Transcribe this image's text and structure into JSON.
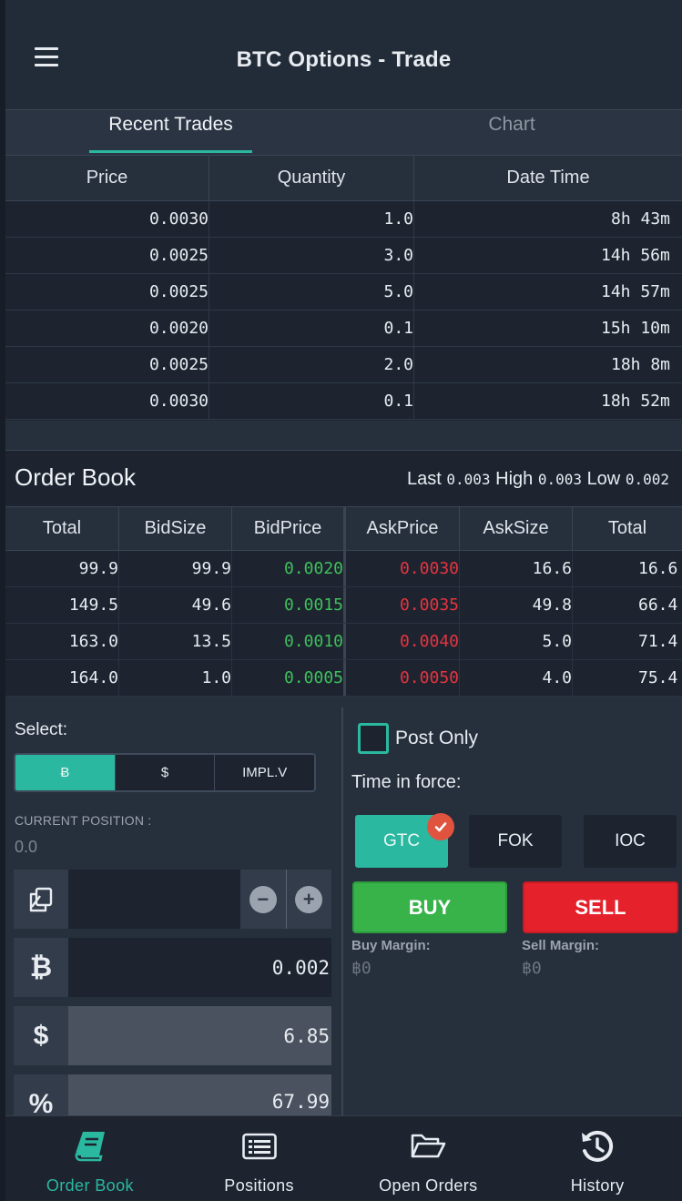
{
  "header": {
    "title": "BTC Options - Trade"
  },
  "tabs": [
    {
      "label": "Recent Trades",
      "active": true
    },
    {
      "label": "Chart",
      "active": false
    }
  ],
  "recent_trades": {
    "columns": [
      "Price",
      "Quantity",
      "Date Time"
    ],
    "rows": [
      {
        "price": "0.0030",
        "quantity": "1.0",
        "time": "8h 43m"
      },
      {
        "price": "0.0025",
        "quantity": "3.0",
        "time": "14h 56m"
      },
      {
        "price": "0.0025",
        "quantity": "5.0",
        "time": "14h 57m"
      },
      {
        "price": "0.0020",
        "quantity": "0.1",
        "time": "15h 10m"
      },
      {
        "price": "0.0025",
        "quantity": "2.0",
        "time": "18h 8m"
      },
      {
        "price": "0.0030",
        "quantity": "0.1",
        "time": "18h 52m"
      }
    ]
  },
  "order_book": {
    "title": "Order Book",
    "last_label": "Last",
    "last_value": "0.003",
    "high_label": "High",
    "high_value": "0.003",
    "low_label": "Low",
    "low_value": "0.002",
    "columns": [
      "Total",
      "BidSize",
      "BidPrice",
      "AskPrice",
      "AskSize",
      "Total"
    ],
    "rows": [
      {
        "bid_total": "99.9",
        "bid_size": "99.9",
        "bid_price": "0.0020",
        "ask_price": "0.0030",
        "ask_size": "16.6",
        "ask_total": "16.6"
      },
      {
        "bid_total": "149.5",
        "bid_size": "49.6",
        "bid_price": "0.0015",
        "ask_price": "0.0035",
        "ask_size": "49.8",
        "ask_total": "66.4"
      },
      {
        "bid_total": "163.0",
        "bid_size": "13.5",
        "bid_price": "0.0010",
        "ask_price": "0.0040",
        "ask_size": "5.0",
        "ask_total": "71.4"
      },
      {
        "bid_total": "164.0",
        "bid_size": "1.0",
        "bid_price": "0.0005",
        "ask_price": "0.0050",
        "ask_size": "4.0",
        "ask_total": "75.4"
      }
    ]
  },
  "order_form": {
    "select_label": "Select:",
    "units": [
      {
        "label": "Ƀ",
        "active": true
      },
      {
        "label": "$",
        "active": false
      },
      {
        "label": "IMPL.V",
        "active": false
      }
    ],
    "current_position_label": "CURRENT POSITION :",
    "current_position_value": "0.0",
    "quantity_value": "",
    "btc_symbol": "₿",
    "btc_value": "0.002",
    "usd_symbol": "$",
    "usd_value": "6.85",
    "pct_symbol": "%",
    "pct_value": "67.99",
    "minus_label": "−",
    "plus_label": "+",
    "post_only_label": "Post Only",
    "time_in_force_label": "Time in force:",
    "tif_options": [
      {
        "label": "GTC",
        "active": true
      },
      {
        "label": "FOK",
        "active": false
      },
      {
        "label": "IOC",
        "active": false
      }
    ],
    "buy_label": "BUY",
    "sell_label": "SELL",
    "buy_margin_label": "Buy Margin:",
    "buy_margin_value": "฿0",
    "sell_margin_label": "Sell Margin:",
    "sell_margin_value": "฿0"
  },
  "nav": [
    {
      "label": "Order Book",
      "icon": "book-icon",
      "active": true
    },
    {
      "label": "Positions",
      "icon": "list-icon",
      "active": false
    },
    {
      "label": "Open Orders",
      "icon": "folder-open-icon",
      "active": false
    },
    {
      "label": "History",
      "icon": "history-icon",
      "active": false
    }
  ],
  "colors": {
    "accent": "#2bb8a0",
    "bid": "#3fbf5b",
    "ask": "#e4343f",
    "buy": "#37b34a",
    "sell": "#e5212c"
  }
}
